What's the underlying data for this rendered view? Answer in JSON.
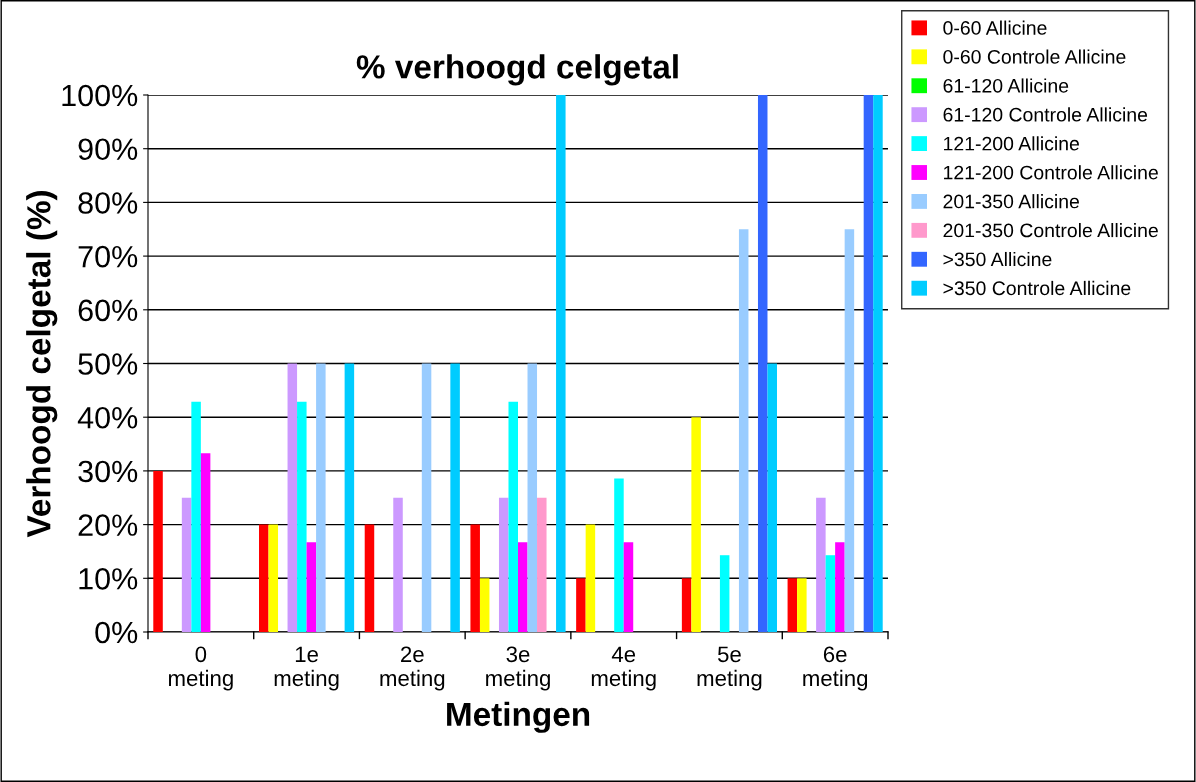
{
  "chart_data": {
    "type": "bar",
    "title": "% verhoogd celgetal",
    "xlabel": "Metingen",
    "ylabel": "Verhoogd celgetal (%)",
    "categories": [
      "0\nmeting",
      "1e\nmeting",
      "2e\nmeting",
      "3e\nmeting",
      "4e\nmeting",
      "5e\nmeting",
      "6e\nmeting"
    ],
    "ylim": [
      0,
      100
    ],
    "yticks": [
      {
        "value": 0,
        "label": "0%"
      },
      {
        "value": 10,
        "label": "10%"
      },
      {
        "value": 20,
        "label": "20%"
      },
      {
        "value": 30,
        "label": "30%"
      },
      {
        "value": 40,
        "label": "40%"
      },
      {
        "value": 50,
        "label": "50%"
      },
      {
        "value": 60,
        "label": "60%"
      },
      {
        "value": 70,
        "label": "70%"
      },
      {
        "value": 80,
        "label": "80%"
      },
      {
        "value": 90,
        "label": "90%"
      },
      {
        "value": 100,
        "label": "100%"
      }
    ],
    "grid": "y",
    "legend": "top right",
    "series": [
      {
        "name": "0-60 Allicine",
        "color": "#ff0000",
        "values": [
          30,
          20,
          20,
          20,
          10,
          10,
          10
        ]
      },
      {
        "name": "0-60 Controle Allicine",
        "color": "#ffff00",
        "values": [
          null,
          20,
          null,
          10,
          20,
          40,
          10
        ]
      },
      {
        "name": "61-120 Allicine",
        "color": "#00ff00",
        "values": [
          null,
          null,
          null,
          null,
          null,
          null,
          null
        ]
      },
      {
        "name": "61-120 Controle Allicine",
        "color": "#cc99ff",
        "values": [
          25,
          50,
          25,
          25,
          null,
          null,
          25
        ]
      },
      {
        "name": "121-200 Allicine",
        "color": "#00ffff",
        "values": [
          42.9,
          42.9,
          null,
          42.9,
          28.6,
          14.3,
          14.3
        ]
      },
      {
        "name": "121-200 Controle Allicine",
        "color": "#ff00ff",
        "values": [
          33.3,
          16.7,
          null,
          16.7,
          16.7,
          null,
          16.7
        ]
      },
      {
        "name": "201-350 Allicine",
        "color": "#99ccff",
        "values": [
          null,
          50,
          50,
          50,
          null,
          75,
          75
        ]
      },
      {
        "name": "201-350 Controle Allicine",
        "color": "#ff99cc",
        "values": [
          null,
          null,
          null,
          25,
          null,
          null,
          null
        ]
      },
      {
        "name": ">350 Allicine",
        "color": "#3366ff",
        "values": [
          null,
          null,
          null,
          null,
          null,
          100,
          100
        ]
      },
      {
        "name": ">350 Controle Allicine",
        "color": "#00ccff",
        "values": [
          null,
          50,
          50,
          100,
          null,
          50,
          100
        ]
      }
    ]
  }
}
